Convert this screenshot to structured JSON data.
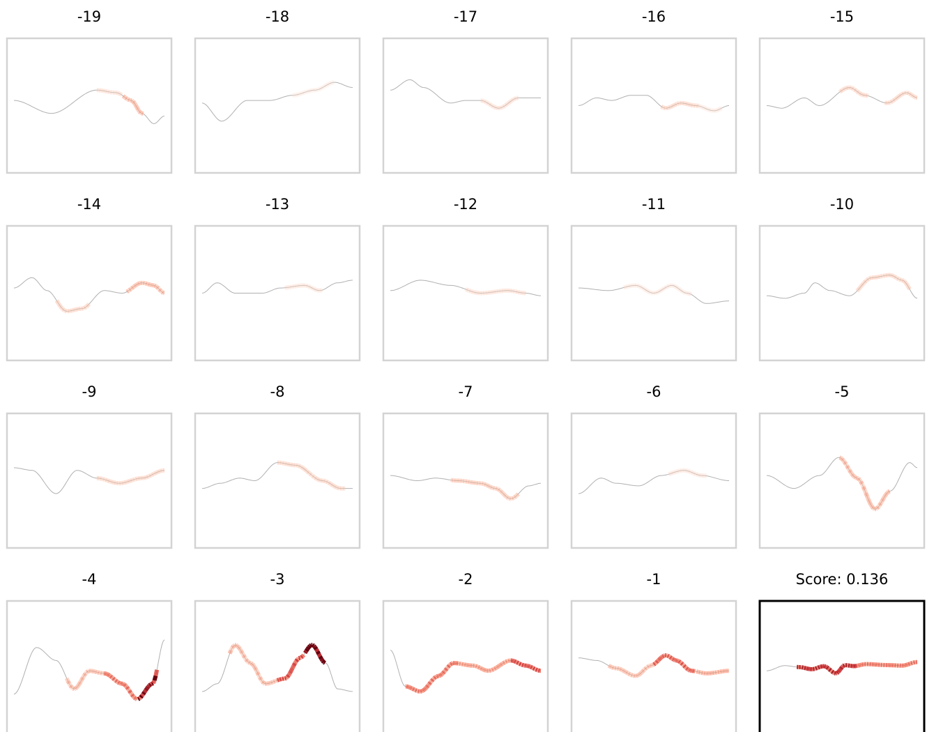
{
  "figure": {
    "background": "#ffffff",
    "panel_border_color": "#d3d3d3",
    "highlight_border_color": "#000000",
    "curve_color": "#b0b0b0",
    "heat_colormap": "Reds"
  },
  "chart_data": {
    "type": "line",
    "layout": "grid 4 rows x 5 columns",
    "axes_visible": false,
    "x_domain": [
      0,
      1
    ],
    "y_domain": [
      -1.3,
      1.3
    ],
    "panels": [
      {
        "title": "-19",
        "highlighted": false,
        "curve": [
          [
            0,
            0.1
          ],
          [
            0.25,
            -0.15
          ],
          [
            0.55,
            0.3
          ],
          [
            0.68,
            0.25
          ],
          [
            0.78,
            0.1
          ],
          [
            0.85,
            -0.15
          ],
          [
            0.93,
            -0.35
          ],
          [
            1,
            -0.2
          ]
        ],
        "intensity": [
          [
            0.55,
            0.72,
            0.15
          ],
          [
            0.72,
            0.86,
            0.3
          ]
        ]
      },
      {
        "title": "-18",
        "highlighted": false,
        "curve": [
          [
            0,
            0.05
          ],
          [
            0.13,
            -0.3
          ],
          [
            0.3,
            0.1
          ],
          [
            0.45,
            0.1
          ],
          [
            0.6,
            0.2
          ],
          [
            0.75,
            0.3
          ],
          [
            0.88,
            0.45
          ],
          [
            1,
            0.35
          ]
        ],
        "intensity": [
          [
            0.6,
            0.88,
            0.08
          ]
        ]
      },
      {
        "title": "-17",
        "highlighted": false,
        "curve": [
          [
            0,
            0.3
          ],
          [
            0.13,
            0.5
          ],
          [
            0.22,
            0.35
          ],
          [
            0.4,
            0.05
          ],
          [
            0.5,
            0.1
          ],
          [
            0.6,
            0.1
          ],
          [
            0.72,
            -0.05
          ],
          [
            0.85,
            0.15
          ],
          [
            1,
            0.15
          ]
        ],
        "intensity": [
          [
            0.6,
            0.85,
            0.15
          ]
        ]
      },
      {
        "title": "-16",
        "highlighted": false,
        "curve": [
          [
            0,
            0.0
          ],
          [
            0.12,
            0.15
          ],
          [
            0.22,
            0.1
          ],
          [
            0.35,
            0.2
          ],
          [
            0.45,
            0.2
          ],
          [
            0.58,
            -0.05
          ],
          [
            0.68,
            0.05
          ],
          [
            0.78,
            0.0
          ],
          [
            0.9,
            -0.1
          ],
          [
            1,
            0.0
          ]
        ],
        "intensity": [
          [
            0.55,
            0.8,
            0.2
          ],
          [
            0.8,
            0.95,
            0.1
          ]
        ]
      },
      {
        "title": "-15",
        "highlighted": false,
        "curve": [
          [
            0,
            0.0
          ],
          [
            0.1,
            -0.05
          ],
          [
            0.25,
            0.15
          ],
          [
            0.35,
            0.0
          ],
          [
            0.55,
            0.35
          ],
          [
            0.65,
            0.2
          ],
          [
            0.8,
            0.05
          ],
          [
            0.93,
            0.25
          ],
          [
            1,
            0.15
          ]
        ],
        "intensity": [
          [
            0.48,
            0.68,
            0.2
          ],
          [
            0.78,
            1.0,
            0.2
          ]
        ]
      },
      {
        "title": "-14",
        "highlighted": false,
        "curve": [
          [
            0,
            0.1
          ],
          [
            0.12,
            0.3
          ],
          [
            0.22,
            0.05
          ],
          [
            0.35,
            -0.35
          ],
          [
            0.45,
            -0.3
          ],
          [
            0.6,
            0.05
          ],
          [
            0.72,
            -0.0
          ],
          [
            0.85,
            0.2
          ],
          [
            0.93,
            0.15
          ],
          [
            1,
            0.0
          ]
        ],
        "intensity": [
          [
            0.28,
            0.5,
            0.2
          ],
          [
            0.75,
            1.0,
            0.3
          ]
        ]
      },
      {
        "title": "-13",
        "highlighted": false,
        "curve": [
          [
            0,
            0.0
          ],
          [
            0.1,
            0.2
          ],
          [
            0.22,
            0.0
          ],
          [
            0.4,
            0.0
          ],
          [
            0.52,
            0.1
          ],
          [
            0.68,
            0.15
          ],
          [
            0.78,
            0.05
          ],
          [
            0.9,
            0.2
          ],
          [
            1,
            0.25
          ]
        ],
        "intensity": [
          [
            0.55,
            0.8,
            0.12
          ]
        ]
      },
      {
        "title": "-12",
        "highlighted": false,
        "curve": [
          [
            0,
            0.05
          ],
          [
            0.2,
            0.25
          ],
          [
            0.4,
            0.15
          ],
          [
            0.6,
            0.0
          ],
          [
            0.78,
            0.05
          ],
          [
            0.9,
            0.0
          ],
          [
            1,
            -0.05
          ]
        ],
        "intensity": [
          [
            0.5,
            0.9,
            0.15
          ]
        ]
      },
      {
        "title": "-11",
        "highlighted": false,
        "curve": [
          [
            0,
            0.1
          ],
          [
            0.2,
            0.05
          ],
          [
            0.38,
            0.15
          ],
          [
            0.5,
            0.0
          ],
          [
            0.62,
            0.15
          ],
          [
            0.72,
            0.0
          ],
          [
            0.85,
            -0.2
          ],
          [
            1,
            -0.15
          ]
        ],
        "intensity": [
          [
            0.3,
            0.75,
            0.1
          ]
        ]
      },
      {
        "title": "-10",
        "highlighted": false,
        "curve": [
          [
            0,
            -0.05
          ],
          [
            0.12,
            -0.1
          ],
          [
            0.25,
            0.0
          ],
          [
            0.32,
            0.2
          ],
          [
            0.42,
            0.05
          ],
          [
            0.55,
            -0.05
          ],
          [
            0.7,
            0.3
          ],
          [
            0.82,
            0.35
          ],
          [
            0.9,
            0.25
          ],
          [
            1,
            -0.1
          ]
        ],
        "intensity": [
          [
            0.6,
            0.95,
            0.2
          ]
        ]
      },
      {
        "title": "-9",
        "highlighted": false,
        "curve": [
          [
            0,
            0.25
          ],
          [
            0.12,
            0.2
          ],
          [
            0.28,
            -0.25
          ],
          [
            0.42,
            0.2
          ],
          [
            0.55,
            0.05
          ],
          [
            0.7,
            -0.05
          ],
          [
            0.85,
            0.05
          ],
          [
            1,
            0.2
          ]
        ],
        "intensity": [
          [
            0.55,
            1.0,
            0.2
          ]
        ]
      },
      {
        "title": "-8",
        "highlighted": false,
        "curve": [
          [
            0,
            -0.15
          ],
          [
            0.12,
            -0.05
          ],
          [
            0.25,
            0.05
          ],
          [
            0.35,
            0.0
          ],
          [
            0.5,
            0.35
          ],
          [
            0.62,
            0.3
          ],
          [
            0.8,
            0.0
          ],
          [
            0.92,
            -0.15
          ],
          [
            1,
            -0.15
          ]
        ],
        "intensity": [
          [
            0.5,
            0.95,
            0.2
          ]
        ]
      },
      {
        "title": "-7",
        "highlighted": false,
        "curve": [
          [
            0,
            0.1
          ],
          [
            0.18,
            0.0
          ],
          [
            0.3,
            0.05
          ],
          [
            0.45,
            0.0
          ],
          [
            0.6,
            -0.05
          ],
          [
            0.7,
            -0.15
          ],
          [
            0.8,
            -0.35
          ],
          [
            0.92,
            -0.1
          ],
          [
            1,
            -0.05
          ]
        ],
        "intensity": [
          [
            0.4,
            0.85,
            0.25
          ]
        ]
      },
      {
        "title": "-6",
        "highlighted": false,
        "curve": [
          [
            0,
            -0.25
          ],
          [
            0.15,
            0.05
          ],
          [
            0.25,
            -0.05
          ],
          [
            0.4,
            -0.1
          ],
          [
            0.55,
            0.1
          ],
          [
            0.7,
            0.2
          ],
          [
            0.82,
            0.1
          ],
          [
            1,
            0.0
          ]
        ],
        "intensity": [
          [
            0.6,
            0.85,
            0.12
          ]
        ]
      },
      {
        "title": "-5",
        "highlighted": false,
        "curve": [
          [
            0,
            0.1
          ],
          [
            0.18,
            -0.15
          ],
          [
            0.35,
            0.1
          ],
          [
            0.48,
            0.45
          ],
          [
            0.6,
            0.05
          ],
          [
            0.72,
            -0.55
          ],
          [
            0.82,
            -0.2
          ],
          [
            0.95,
            0.35
          ],
          [
            1,
            0.25
          ]
        ],
        "intensity": [
          [
            0.48,
            0.82,
            0.3
          ]
        ]
      },
      {
        "title": "-4",
        "highlighted": false,
        "curve": [
          [
            0,
            -0.5
          ],
          [
            0.15,
            0.4
          ],
          [
            0.28,
            0.15
          ],
          [
            0.4,
            -0.4
          ],
          [
            0.5,
            -0.05
          ],
          [
            0.6,
            -0.1
          ],
          [
            0.72,
            -0.3
          ],
          [
            0.82,
            -0.6
          ],
          [
            0.92,
            -0.3
          ],
          [
            1,
            0.55
          ]
        ],
        "intensity": [
          [
            0.35,
            0.6,
            0.3
          ],
          [
            0.6,
            0.82,
            0.5
          ],
          [
            0.82,
            0.95,
            0.8
          ]
        ]
      },
      {
        "title": "-3",
        "highlighted": false,
        "curve": [
          [
            0,
            -0.45
          ],
          [
            0.1,
            -0.3
          ],
          [
            0.22,
            0.45
          ],
          [
            0.32,
            0.1
          ],
          [
            0.42,
            -0.3
          ],
          [
            0.55,
            -0.2
          ],
          [
            0.65,
            0.2
          ],
          [
            0.73,
            0.45
          ],
          [
            0.82,
            0.1
          ],
          [
            0.9,
            -0.4
          ],
          [
            1,
            -0.45
          ]
        ],
        "intensity": [
          [
            0.18,
            0.5,
            0.3
          ],
          [
            0.5,
            0.68,
            0.6
          ],
          [
            0.68,
            0.82,
            1.0
          ]
        ]
      },
      {
        "title": "-2",
        "highlighted": false,
        "curve": [
          [
            0,
            0.35
          ],
          [
            0.1,
            -0.35
          ],
          [
            0.2,
            -0.45
          ],
          [
            0.32,
            -0.15
          ],
          [
            0.42,
            0.1
          ],
          [
            0.55,
            0.05
          ],
          [
            0.65,
            -0.05
          ],
          [
            0.8,
            0.15
          ],
          [
            0.9,
            0.05
          ],
          [
            1,
            -0.05
          ]
        ],
        "intensity": [
          [
            0.1,
            0.45,
            0.5
          ],
          [
            0.45,
            0.8,
            0.4
          ],
          [
            0.8,
            1.0,
            0.6
          ]
        ]
      },
      {
        "title": "-1",
        "highlighted": false,
        "curve": [
          [
            0,
            0.2
          ],
          [
            0.12,
            0.15
          ],
          [
            0.25,
            0.0
          ],
          [
            0.38,
            -0.15
          ],
          [
            0.48,
            0.05
          ],
          [
            0.58,
            0.25
          ],
          [
            0.65,
            0.15
          ],
          [
            0.75,
            -0.05
          ],
          [
            0.85,
            -0.1
          ],
          [
            1,
            -0.05
          ]
        ],
        "intensity": [
          [
            0.2,
            0.5,
            0.3
          ],
          [
            0.5,
            0.78,
            0.55
          ],
          [
            0.78,
            1.0,
            0.35
          ]
        ]
      },
      {
        "title": "Score: 0.136",
        "highlighted": true,
        "curve": [
          [
            0,
            -0.05
          ],
          [
            0.12,
            0.05
          ],
          [
            0.22,
            0.02
          ],
          [
            0.3,
            -0.02
          ],
          [
            0.38,
            0.04
          ],
          [
            0.46,
            -0.1
          ],
          [
            0.52,
            0.06
          ],
          [
            0.58,
            0.04
          ],
          [
            0.66,
            0.08
          ],
          [
            0.8,
            0.06
          ],
          [
            0.9,
            0.05
          ],
          [
            1,
            0.12
          ]
        ],
        "intensity": [
          [
            0.2,
            0.6,
            0.7
          ],
          [
            0.6,
            1.0,
            0.5
          ]
        ]
      }
    ]
  }
}
